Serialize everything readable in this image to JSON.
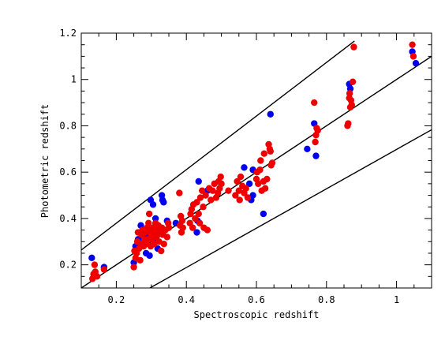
{
  "chart_data": {
    "type": "scatter",
    "xlabel": "Spectroscopic redshift",
    "ylabel": "Photometric redshift",
    "xlim": [
      0.1,
      1.1
    ],
    "ylim": [
      0.1,
      1.2
    ],
    "x_ticks": [
      0.2,
      0.4,
      0.6,
      0.8,
      1.0
    ],
    "x_tick_labels": [
      "0.2",
      "0.4",
      "0.6",
      "0.8",
      "1"
    ],
    "y_ticks": [
      0.2,
      0.4,
      0.6,
      0.8,
      1.0,
      1.2
    ],
    "y_tick_labels": [
      "0.2",
      "0.4",
      "0.6",
      "0.8",
      "1",
      "1.2"
    ],
    "grid": false,
    "reference_lines": [
      {
        "x1": 0.1,
        "y1": 0.264,
        "x2": 0.88,
        "y2": 1.166
      },
      {
        "x1": 0.1,
        "y1": 0.1,
        "x2": 1.1,
        "y2": 1.1
      },
      {
        "x1": 0.296,
        "y1": 0.1,
        "x2": 1.1,
        "y2": 0.783
      }
    ],
    "series": [
      {
        "color": "#0000ee",
        "points": [
          [
            0.13,
            0.23
          ],
          [
            0.165,
            0.19
          ],
          [
            0.25,
            0.21
          ],
          [
            0.255,
            0.28
          ],
          [
            0.262,
            0.31
          ],
          [
            0.27,
            0.37
          ],
          [
            0.275,
            0.32
          ],
          [
            0.285,
            0.25
          ],
          [
            0.29,
            0.33
          ],
          [
            0.295,
            0.24
          ],
          [
            0.298,
            0.48
          ],
          [
            0.305,
            0.46
          ],
          [
            0.31,
            0.3
          ],
          [
            0.312,
            0.4
          ],
          [
            0.318,
            0.27
          ],
          [
            0.33,
            0.5
          ],
          [
            0.332,
            0.48
          ],
          [
            0.335,
            0.47
          ],
          [
            0.345,
            0.39
          ],
          [
            0.37,
            0.38
          ],
          [
            0.43,
            0.34
          ],
          [
            0.432,
            0.39
          ],
          [
            0.435,
            0.56
          ],
          [
            0.46,
            0.52
          ],
          [
            0.565,
            0.62
          ],
          [
            0.58,
            0.55
          ],
          [
            0.585,
            0.48
          ],
          [
            0.59,
            0.5
          ],
          [
            0.59,
            0.61
          ],
          [
            0.62,
            0.42
          ],
          [
            0.64,
            0.85
          ],
          [
            0.745,
            0.7
          ],
          [
            0.765,
            0.81
          ],
          [
            0.77,
            0.67
          ],
          [
            0.865,
            0.98
          ],
          [
            0.868,
            0.96
          ],
          [
            1.045,
            1.12
          ],
          [
            1.055,
            1.07
          ]
        ]
      },
      {
        "color": "#ee0000",
        "points": [
          [
            0.132,
            0.14
          ],
          [
            0.135,
            0.16
          ],
          [
            0.14,
            0.17
          ],
          [
            0.145,
            0.15
          ],
          [
            0.138,
            0.2
          ],
          [
            0.165,
            0.18
          ],
          [
            0.25,
            0.19
          ],
          [
            0.252,
            0.26
          ],
          [
            0.255,
            0.23
          ],
          [
            0.258,
            0.25
          ],
          [
            0.26,
            0.3
          ],
          [
            0.262,
            0.34
          ],
          [
            0.265,
            0.27
          ],
          [
            0.268,
            0.22
          ],
          [
            0.27,
            0.29
          ],
          [
            0.272,
            0.33
          ],
          [
            0.275,
            0.35
          ],
          [
            0.278,
            0.28
          ],
          [
            0.28,
            0.31
          ],
          [
            0.283,
            0.34
          ],
          [
            0.286,
            0.29
          ],
          [
            0.288,
            0.36
          ],
          [
            0.29,
            0.31
          ],
          [
            0.292,
            0.38
          ],
          [
            0.294,
            0.42
          ],
          [
            0.296,
            0.35
          ],
          [
            0.298,
            0.28
          ],
          [
            0.3,
            0.33
          ],
          [
            0.302,
            0.31
          ],
          [
            0.305,
            0.36
          ],
          [
            0.308,
            0.29
          ],
          [
            0.31,
            0.34
          ],
          [
            0.312,
            0.38
          ],
          [
            0.315,
            0.32
          ],
          [
            0.318,
            0.35
          ],
          [
            0.32,
            0.37
          ],
          [
            0.322,
            0.3
          ],
          [
            0.325,
            0.34
          ],
          [
            0.328,
            0.26
          ],
          [
            0.33,
            0.36
          ],
          [
            0.333,
            0.33
          ],
          [
            0.336,
            0.29
          ],
          [
            0.34,
            0.35
          ],
          [
            0.345,
            0.32
          ],
          [
            0.348,
            0.38
          ],
          [
            0.35,
            0.36
          ],
          [
            0.38,
            0.51
          ],
          [
            0.382,
            0.37
          ],
          [
            0.384,
            0.41
          ],
          [
            0.386,
            0.34
          ],
          [
            0.388,
            0.39
          ],
          [
            0.39,
            0.36
          ],
          [
            0.41,
            0.38
          ],
          [
            0.412,
            0.42
          ],
          [
            0.415,
            0.44
          ],
          [
            0.418,
            0.36
          ],
          [
            0.42,
            0.46
          ],
          [
            0.425,
            0.4
          ],
          [
            0.43,
            0.47
          ],
          [
            0.435,
            0.42
          ],
          [
            0.438,
            0.38
          ],
          [
            0.44,
            0.49
          ],
          [
            0.445,
            0.52
          ],
          [
            0.448,
            0.45
          ],
          [
            0.45,
            0.36
          ],
          [
            0.455,
            0.5
          ],
          [
            0.46,
            0.35
          ],
          [
            0.465,
            0.53
          ],
          [
            0.47,
            0.48
          ],
          [
            0.475,
            0.52
          ],
          [
            0.48,
            0.55
          ],
          [
            0.485,
            0.49
          ],
          [
            0.49,
            0.51
          ],
          [
            0.492,
            0.56
          ],
          [
            0.495,
            0.53
          ],
          [
            0.498,
            0.58
          ],
          [
            0.5,
            0.55
          ],
          [
            0.52,
            0.52
          ],
          [
            0.54,
            0.5
          ],
          [
            0.545,
            0.56
          ],
          [
            0.55,
            0.52
          ],
          [
            0.552,
            0.48
          ],
          [
            0.555,
            0.58
          ],
          [
            0.56,
            0.54
          ],
          [
            0.565,
            0.51
          ],
          [
            0.57,
            0.53
          ],
          [
            0.575,
            0.49
          ],
          [
            0.6,
            0.57
          ],
          [
            0.602,
            0.6
          ],
          [
            0.605,
            0.55
          ],
          [
            0.61,
            0.61
          ],
          [
            0.612,
            0.65
          ],
          [
            0.615,
            0.52
          ],
          [
            0.62,
            0.56
          ],
          [
            0.622,
            0.68
          ],
          [
            0.625,
            0.53
          ],
          [
            0.63,
            0.57
          ],
          [
            0.635,
            0.72
          ],
          [
            0.638,
            0.7
          ],
          [
            0.64,
            0.69
          ],
          [
            0.642,
            0.63
          ],
          [
            0.645,
            0.64
          ],
          [
            0.765,
            0.9
          ],
          [
            0.768,
            0.73
          ],
          [
            0.77,
            0.76
          ],
          [
            0.772,
            0.79
          ],
          [
            0.775,
            0.78
          ],
          [
            0.86,
            0.8
          ],
          [
            0.862,
            0.81
          ],
          [
            0.865,
            0.92
          ],
          [
            0.866,
            0.94
          ],
          [
            0.868,
            0.88
          ],
          [
            0.87,
            0.91
          ],
          [
            0.872,
            0.89
          ],
          [
            0.875,
            0.99
          ],
          [
            0.878,
            1.14
          ],
          [
            1.045,
            1.15
          ],
          [
            1.048,
            1.1
          ]
        ]
      }
    ]
  }
}
